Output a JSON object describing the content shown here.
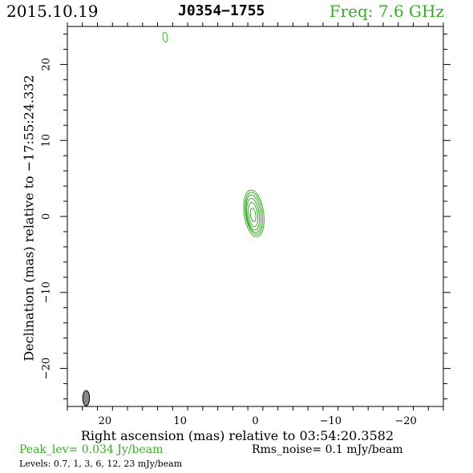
{
  "header": {
    "date": "2015.10.19",
    "source": "J0354−1755",
    "freq": "Freq: 7.6 GHz"
  },
  "colors": {
    "contour": "#3aaa28",
    "beam_fill": "#888888",
    "text": "#000000"
  },
  "chart_data": {
    "type": "contour",
    "xlabel": "Right ascension (mas) relative to 03:54:20.3582",
    "ylabel": "Declination (mas) relative to −17:55:24.332",
    "xlim": [
      25,
      -25
    ],
    "ylim": [
      -25,
      25
    ],
    "x_ticks": [
      20,
      10,
      0,
      -10,
      -20
    ],
    "y_ticks": [
      20,
      10,
      0,
      -10,
      -20
    ],
    "x_tick_labels": [
      "20",
      "10",
      "0",
      "−10",
      "−20"
    ],
    "y_tick_labels": [
      "20",
      "10",
      "0",
      "−10",
      "−20"
    ],
    "contours": [
      {
        "x": 0.2,
        "y": 0.4,
        "a": 1.3,
        "b": 3.1,
        "level": 0.7
      },
      {
        "x": 0.2,
        "y": 0.4,
        "a": 1.1,
        "b": 2.8,
        "level": 1
      },
      {
        "x": 0.25,
        "y": 0.35,
        "a": 0.95,
        "b": 2.5,
        "level": 3
      },
      {
        "x": 0.3,
        "y": 0.3,
        "a": 0.8,
        "b": 2.1,
        "level": 6
      },
      {
        "x": 0.3,
        "y": 0.25,
        "a": 0.6,
        "b": 1.6,
        "level": 12
      },
      {
        "x": 0.3,
        "y": 0.2,
        "a": 0.35,
        "b": 0.9,
        "level": 23
      },
      {
        "x": 12.0,
        "y": 23.6,
        "a": 0.3,
        "b": 0.65,
        "level": 0.7
      }
    ],
    "beam": {
      "x": 22.5,
      "y": -23.9,
      "a": 0.45,
      "b": 1.0
    },
    "peak_lev": "Peak_lev=  0.034 Jy/beam",
    "rms_noise": "Rms_noise=   0.1 mJy/beam",
    "levels_text": "Levels: 0.7,    1,    3,    6,   12,   23  mJy/beam"
  }
}
